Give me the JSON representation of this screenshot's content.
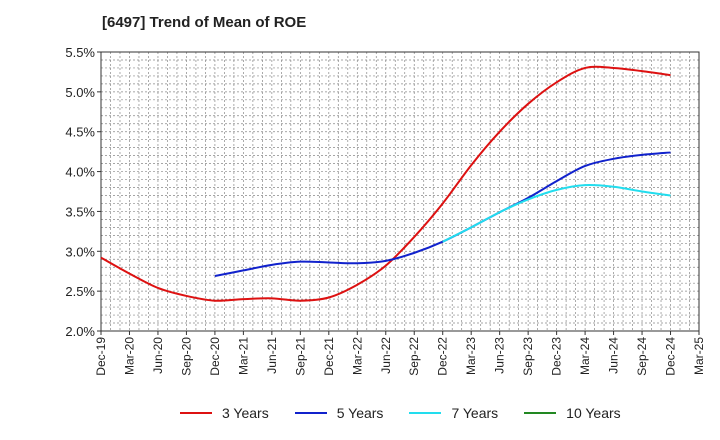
{
  "title": "[6497]  Trend of Mean of ROE",
  "chart_data": {
    "type": "line",
    "title": "[6497]  Trend of Mean of ROE",
    "xlabel": "",
    "ylabel": "",
    "x": [
      "Dec-19",
      "Mar-20",
      "Jun-20",
      "Sep-20",
      "Dec-20",
      "Mar-21",
      "Jun-21",
      "Sep-21",
      "Dec-21",
      "Mar-22",
      "Jun-22",
      "Sep-22",
      "Dec-22",
      "Mar-23",
      "Jun-23",
      "Sep-23",
      "Dec-23",
      "Mar-24",
      "Jun-24",
      "Sep-24",
      "Dec-24",
      "Mar-25"
    ],
    "ylim": [
      2.0,
      5.5
    ],
    "yticks": [
      "2.0%",
      "2.5%",
      "3.0%",
      "3.5%",
      "4.0%",
      "4.5%",
      "5.0%",
      "5.5%"
    ],
    "ytick_values": [
      2.0,
      2.5,
      3.0,
      3.5,
      4.0,
      4.5,
      5.0,
      5.5
    ],
    "grid": true,
    "legend_position": "bottom",
    "series": [
      {
        "name": "3 Years",
        "color": "#dd1111",
        "values": [
          2.92,
          2.72,
          2.54,
          2.44,
          2.38,
          2.4,
          2.41,
          2.38,
          2.42,
          2.58,
          2.82,
          3.18,
          3.6,
          4.08,
          4.5,
          4.85,
          5.12,
          5.3,
          5.3,
          5.26,
          5.21,
          null
        ]
      },
      {
        "name": "5 Years",
        "color": "#1122cc",
        "values": [
          null,
          null,
          null,
          null,
          2.69,
          2.76,
          2.83,
          2.87,
          2.86,
          2.85,
          2.88,
          2.98,
          3.12,
          3.3,
          3.49,
          3.67,
          3.88,
          4.07,
          4.16,
          4.21,
          4.24,
          null
        ]
      },
      {
        "name": "7 Years",
        "color": "#22ddee",
        "values": [
          null,
          null,
          null,
          null,
          null,
          null,
          null,
          null,
          null,
          null,
          null,
          null,
          3.12,
          3.3,
          3.49,
          3.65,
          3.77,
          3.83,
          3.81,
          3.75,
          3.7,
          null
        ]
      },
      {
        "name": "10 Years",
        "color": "#228822",
        "values": [
          null,
          null,
          null,
          null,
          null,
          null,
          null,
          null,
          null,
          null,
          null,
          null,
          null,
          null,
          null,
          null,
          null,
          null,
          null,
          null,
          null,
          null
        ]
      }
    ]
  }
}
